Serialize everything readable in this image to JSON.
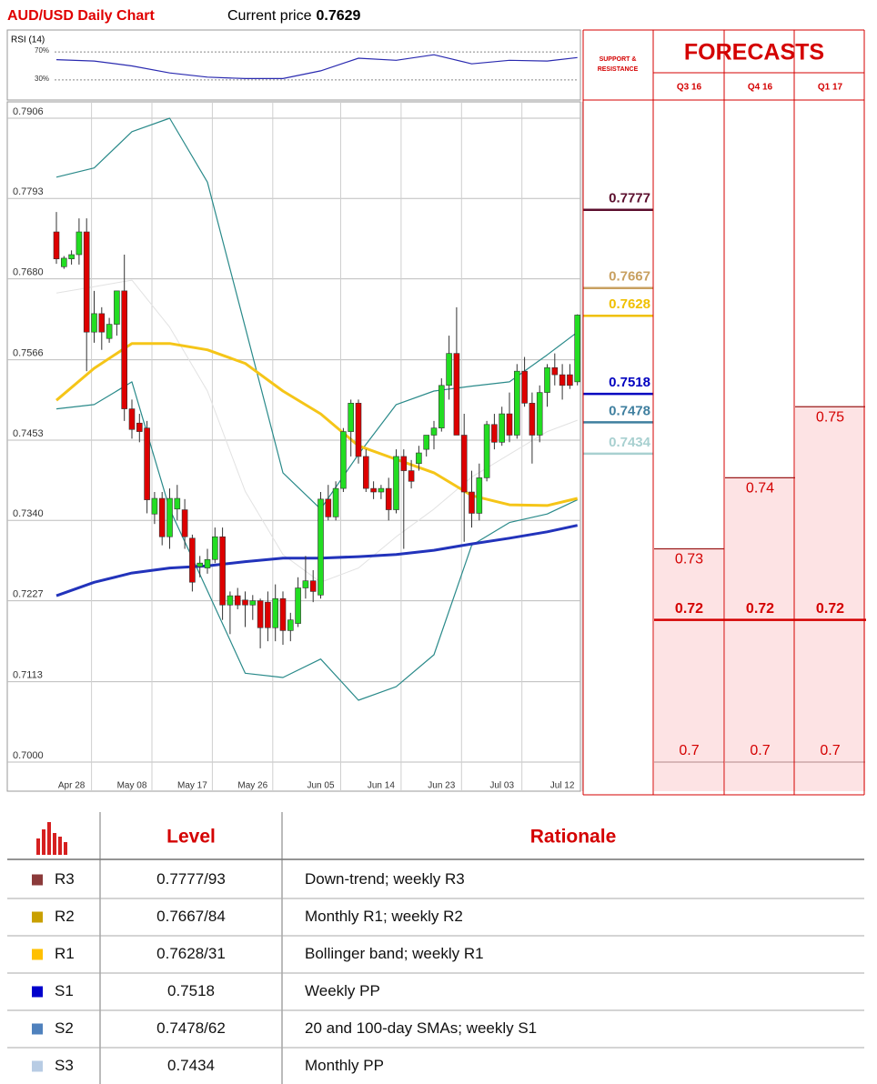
{
  "header": {
    "title": "AUD/USD Daily Chart",
    "price_label": "Current price",
    "price": 0.7629
  },
  "chart_data": [
    {
      "type": "candlestick",
      "categories": [
        null,
        null,
        "Apr 28",
        null,
        null,
        null,
        null,
        null,
        null,
        null,
        "May 08",
        null,
        null,
        null,
        null,
        null,
        null,
        null,
        "May 17",
        null,
        null,
        null,
        null,
        null,
        null,
        null,
        "May 26",
        null,
        null,
        null,
        null,
        null,
        null,
        null,
        null,
        "Jun 05",
        null,
        null,
        null,
        null,
        null,
        null,
        null,
        "Jun 14",
        null,
        null,
        null,
        null,
        null,
        null,
        null,
        "Jun 23",
        null,
        null,
        null,
        null,
        null,
        null,
        null,
        "Jul 03",
        null,
        null,
        null,
        null,
        null,
        null,
        null,
        "Jul 12",
        null,
        null
      ],
      "open": [
        0.7746,
        0.7697,
        0.7708,
        0.7714,
        0.7746,
        0.7605,
        0.7631,
        0.7596,
        0.7616,
        0.7663,
        0.7497,
        0.7477,
        0.747,
        0.7349,
        0.7371,
        0.7317,
        0.7356,
        0.7355,
        0.7315,
        0.7275,
        0.7273,
        0.7285,
        0.7317,
        0.7221,
        0.7234,
        0.7228,
        0.7221,
        0.7227,
        0.7225,
        0.7189,
        0.723,
        0.7185,
        0.7195,
        0.7245,
        0.7255,
        0.7235,
        0.737,
        0.7345,
        0.7385,
        0.7465,
        0.7505,
        0.743,
        0.7385,
        0.738,
        0.7385,
        0.7355,
        0.743,
        0.741,
        0.742,
        0.744,
        0.746,
        0.747,
        0.753,
        0.7575,
        0.746,
        0.738,
        0.735,
        0.74,
        0.7475,
        0.745,
        0.749,
        0.746,
        0.755,
        0.7505,
        0.746,
        0.752,
        0.7555,
        0.7545,
        0.7545,
        0.7535
      ],
      "high": [
        0.7774,
        0.7712,
        0.772,
        0.7765,
        0.7765,
        0.7663,
        0.764,
        0.7625,
        0.766,
        0.7714,
        0.751,
        0.749,
        0.748,
        0.738,
        0.738,
        0.7385,
        0.739,
        0.737,
        0.732,
        0.729,
        0.73,
        0.733,
        0.733,
        0.724,
        0.7245,
        0.724,
        0.7235,
        0.723,
        0.724,
        0.725,
        0.724,
        0.721,
        0.726,
        0.729,
        0.727,
        0.738,
        0.739,
        0.7395,
        0.747,
        0.751,
        0.751,
        0.744,
        0.7395,
        0.739,
        0.74,
        0.744,
        0.744,
        0.7425,
        0.7445,
        0.746,
        0.748,
        0.754,
        0.76,
        0.764,
        0.749,
        0.741,
        0.742,
        0.748,
        0.749,
        0.75,
        0.752,
        0.756,
        0.757,
        0.752,
        0.753,
        0.756,
        0.7575,
        0.756,
        0.756,
        0.763
      ],
      "low": [
        0.7701,
        0.7694,
        0.77,
        0.77,
        0.755,
        0.759,
        0.758,
        0.759,
        0.76,
        0.748,
        0.7455,
        0.745,
        0.735,
        0.7335,
        0.7305,
        0.73,
        0.734,
        0.73,
        0.724,
        0.726,
        0.7265,
        0.728,
        0.72,
        0.718,
        0.7215,
        0.719,
        0.72,
        0.716,
        0.717,
        0.717,
        0.7165,
        0.717,
        0.719,
        0.723,
        0.7225,
        0.723,
        0.734,
        0.734,
        0.738,
        0.743,
        0.742,
        0.738,
        0.737,
        0.737,
        0.734,
        0.735,
        0.73,
        0.7385,
        0.741,
        0.743,
        0.744,
        0.7465,
        0.751,
        0.746,
        0.731,
        0.733,
        0.734,
        0.7395,
        0.744,
        0.7445,
        0.745,
        0.7455,
        0.75,
        0.742,
        0.745,
        0.75,
        0.753,
        0.751,
        0.7525,
        0.753
      ],
      "close": [
        0.7708,
        0.7709,
        0.7714,
        0.7746,
        0.7605,
        0.7631,
        0.7605,
        0.7616,
        0.7663,
        0.7497,
        0.7468,
        0.7465,
        0.7369,
        0.7371,
        0.7317,
        0.7371,
        0.7371,
        0.7317,
        0.7253,
        0.728,
        0.7285,
        0.7317,
        0.7221,
        0.7234,
        0.7221,
        0.7221,
        0.7227,
        0.7189,
        0.7189,
        0.723,
        0.7185,
        0.72,
        0.7245,
        0.7255,
        0.724,
        0.737,
        0.7345,
        0.7385,
        0.7465,
        0.7505,
        0.743,
        0.7385,
        0.738,
        0.7385,
        0.7355,
        0.743,
        0.741,
        0.7395,
        0.7435,
        0.746,
        0.747,
        0.753,
        0.7575,
        0.746,
        0.738,
        0.735,
        0.74,
        0.7475,
        0.745,
        0.749,
        0.746,
        0.755,
        0.7505,
        0.746,
        0.752,
        0.7555,
        0.7545,
        0.753,
        0.753,
        0.7629
      ],
      "up_color": "#22dd22",
      "down_color": "#dd0000",
      "overlays": {
        "x": [
          0,
          5,
          10,
          15,
          20,
          25,
          30,
          35,
          40,
          45,
          50,
          55,
          60,
          65,
          69
        ],
        "lines": [
          {
            "color": "#e2e2e2",
            "width": 1,
            "values": [
              0.766,
              0.7669,
              0.7678,
              0.7612,
              0.7522,
              0.7381,
              0.7292,
              0.7253,
              0.7273,
              0.7317,
              0.7356,
              0.7401,
              0.7433,
              0.7465,
              0.7481
            ]
          },
          {
            "color": "#2a8a8a",
            "width": 1.2,
            "values": [
              0.7823,
              0.7836,
              0.7887,
              0.7906,
              0.7816,
              0.7612,
              0.7407,
              0.7356,
              0.7433,
              0.7503,
              0.7522,
              0.7529,
              0.7535,
              0.7573,
              0.7605
            ]
          },
          {
            "color": "#2a8a8a",
            "width": 1.2,
            "values": [
              0.7497,
              0.7503,
              0.7535,
              0.7356,
              0.7241,
              0.7125,
              0.7119,
              0.7145,
              0.7087,
              0.7106,
              0.7151,
              0.7305,
              0.7337,
              0.7349,
              0.7369
            ]
          },
          {
            "color": "#f5c518",
            "width": 3,
            "values": [
              0.7509,
              0.7554,
              0.7589,
              0.7589,
              0.758,
              0.7561,
              0.7522,
              0.749,
              0.7445,
              0.7426,
              0.7407,
              0.7375,
              0.7362,
              0.7361,
              0.7371
            ]
          },
          {
            "color": "#2233bb",
            "width": 3,
            "values": [
              0.7234,
              0.7253,
              0.7266,
              0.7273,
              0.7276,
              0.7282,
              0.7287,
              0.7287,
              0.7289,
              0.7292,
              0.7298,
              0.7307,
              0.7315,
              0.7324,
              0.7333
            ]
          }
        ]
      },
      "ylim": [
        0.6959,
        0.7929
      ],
      "yticks": [
        0.7906,
        0.7793,
        {
          "value": 0.768,
          "label": "0.7680"
        },
        0.7566,
        0.7453,
        {
          "value": 0.734,
          "label": "0.7340"
        },
        0.7227,
        0.7113,
        {
          "value": 0.7,
          "label": "0.7000"
        }
      ],
      "grid": true
    },
    {
      "type": "line",
      "title": "RSI (14)",
      "x": [
        0,
        5,
        10,
        15,
        20,
        25,
        30,
        35,
        40,
        45,
        50,
        55,
        60,
        65,
        69
      ],
      "values": [
        59,
        57,
        50,
        40,
        34,
        32,
        32,
        43,
        61,
        58,
        66,
        53,
        58,
        57,
        62
      ],
      "color": "#2a2ab0",
      "ylim": [
        0,
        100
      ],
      "yticks": [
        {
          "value": 30,
          "label": "30%"
        },
        {
          "value": 70,
          "label": "70%"
        }
      ]
    }
  ],
  "levels": {
    "title": [
      "SUPPORT &",
      "RESISTANCE"
    ],
    "items": [
      {
        "value": 0.7777,
        "color": "#5b0e2d"
      },
      {
        "value": 0.7667,
        "color": "#c8a060"
      },
      {
        "value": 0.7628,
        "color": "#f0c000"
      },
      {
        "value": 0.7518,
        "color": "#0000c0"
      },
      {
        "value": 0.7478,
        "color": "#3f7f9f"
      },
      {
        "value": 0.7434,
        "color": "#a8d0d0"
      }
    ]
  },
  "forecasts": {
    "title": "FORECASTS",
    "columns": [
      {
        "quarter": "Q3 16",
        "high": 0.73,
        "mid": 0.72,
        "low": 0.7
      },
      {
        "quarter": "Q4 16",
        "high": 0.74,
        "mid": 0.72,
        "low": 0.7
      },
      {
        "quarter": "Q1 17",
        "high": 0.75,
        "mid": 0.72,
        "low": 0.7
      }
    ]
  },
  "table": {
    "header": [
      "Level",
      "Rationale"
    ],
    "rows": [
      {
        "name": "R3",
        "color": "#8b3a3a",
        "level": "0.7777/93",
        "rationale": "Down-trend; weekly R3"
      },
      {
        "name": "R2",
        "color": "#c9a000",
        "level": "0.7667/84",
        "rationale": "Monthly R1; weekly R2"
      },
      {
        "name": "R1",
        "color": "#ffc000",
        "level": "0.7628/31",
        "rationale": "Bollinger band; weekly R1"
      },
      {
        "name": "S1",
        "color": "#0000cc",
        "level": "0.7518",
        "rationale": "Weekly PP"
      },
      {
        "name": "S2",
        "color": "#4f81bd",
        "level": "0.7478/62",
        "rationale": "20 and 100-day SMAs; weekly S1"
      },
      {
        "name": "S3",
        "color": "#b8cce4",
        "level": "0.7434",
        "rationale": "Monthly PP"
      }
    ]
  }
}
